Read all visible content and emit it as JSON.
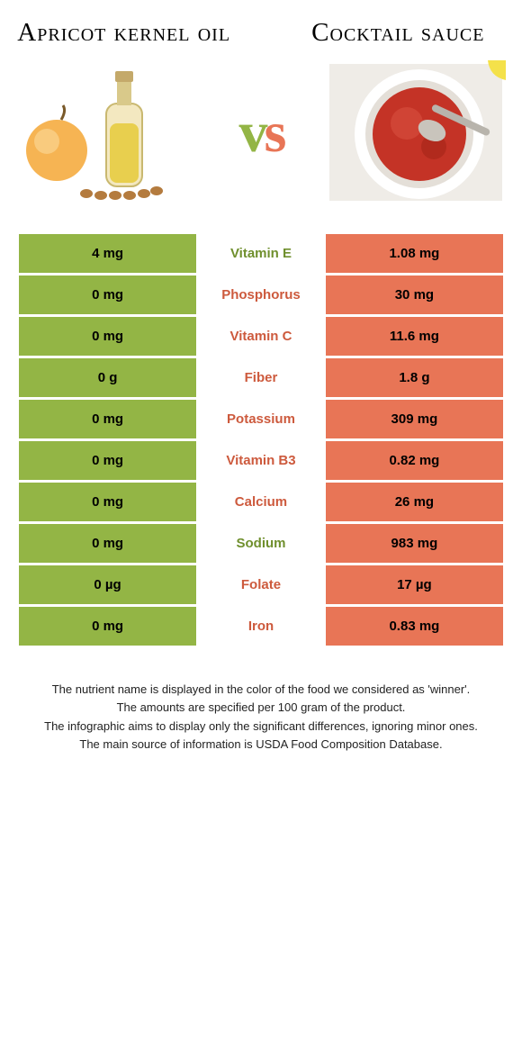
{
  "left_title": "Apricot kernel oil",
  "right_title": "Cocktail sauce",
  "colors": {
    "green": "#93b545",
    "orange": "#e87556",
    "green_text": "#6f8f2d",
    "orange_text": "#cd5a3d"
  },
  "rows": [
    {
      "nutrient": "Vitamin E",
      "left": "4 mg",
      "right": "1.08 mg",
      "winner": "left"
    },
    {
      "nutrient": "Phosphorus",
      "left": "0 mg",
      "right": "30 mg",
      "winner": "right"
    },
    {
      "nutrient": "Vitamin C",
      "left": "0 mg",
      "right": "11.6 mg",
      "winner": "right"
    },
    {
      "nutrient": "Fiber",
      "left": "0 g",
      "right": "1.8 g",
      "winner": "right"
    },
    {
      "nutrient": "Potassium",
      "left": "0 mg",
      "right": "309 mg",
      "winner": "right"
    },
    {
      "nutrient": "Vitamin B3",
      "left": "0 mg",
      "right": "0.82 mg",
      "winner": "right"
    },
    {
      "nutrient": "Calcium",
      "left": "0 mg",
      "right": "26 mg",
      "winner": "right"
    },
    {
      "nutrient": "Sodium",
      "left": "0 mg",
      "right": "983 mg",
      "winner": "left"
    },
    {
      "nutrient": "Folate",
      "left": "0 µg",
      "right": "17 µg",
      "winner": "right"
    },
    {
      "nutrient": "Iron",
      "left": "0 mg",
      "right": "0.83 mg",
      "winner": "right"
    }
  ],
  "footer": [
    "The nutrient name is displayed in the color of the food we considered as 'winner'.",
    "The amounts are specified per 100 gram of the product.",
    "The infographic aims to display only the significant differences, ignoring minor ones.",
    "The main source of information is USDA Food Composition Database."
  ]
}
